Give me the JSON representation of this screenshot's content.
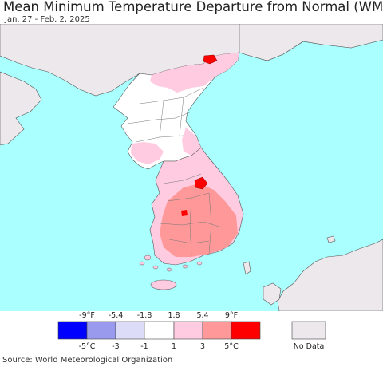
{
  "title": "Mean Minimum Temperature Departure from Normal (WMO)",
  "date_range": "Jan. 27 - Feb. 2, 2025",
  "source": "Source: World Meteorological Organization",
  "legend": {
    "f_labels": [
      "-9°F",
      "-5.4",
      "-1.8",
      "1.8",
      "5.4",
      "9°F"
    ],
    "c_labels": [
      "-5°C",
      "-3",
      "-1",
      "1",
      "3",
      "5°C"
    ],
    "colors": [
      "#0000ff",
      "#9999ee",
      "#dddcf8",
      "#ffffff",
      "#ffcbe0",
      "#ff9999",
      "#ff0000"
    ],
    "no_data_label": "No Data",
    "no_data_color": "#ece8ec"
  },
  "colors": {
    "sea": "#aaffff",
    "no_data_land": "#ece8ec",
    "near_normal": "#ffffff",
    "light_warm": "#ffcbe0",
    "warm": "#ff9999",
    "hot": "#ff0000"
  }
}
